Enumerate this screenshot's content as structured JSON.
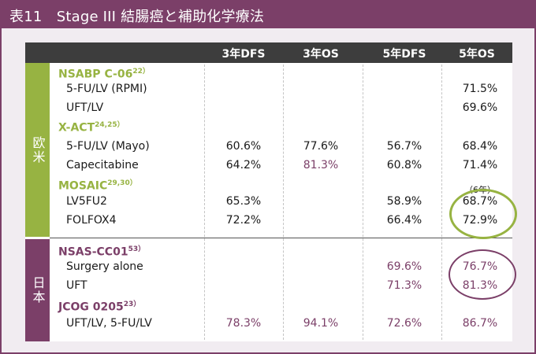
{
  "title": "表11　Stage III 結腸癌と補助化学療法",
  "columns": [
    "3年DFS",
    "3年OS",
    "5年DFS",
    "5年OS"
  ],
  "regions": {
    "west": "欧米",
    "japan": "日本"
  },
  "trials": [
    {
      "name": "NSABP C-06",
      "ref": "22）",
      "color": "green"
    },
    {
      "name": "X-ACT",
      "ref": "24,25）",
      "color": "green"
    },
    {
      "name": "MOSAIC",
      "ref": "29,30）",
      "color": "green"
    },
    {
      "name": "NSAS-CC01",
      "ref": "53）",
      "color": "purple"
    },
    {
      "name": "JCOG 0205",
      "ref": "23）",
      "color": "purple"
    }
  ],
  "arms": [
    {
      "label": "5-FU/LV (RPMI)",
      "dfs3": "",
      "os3": "",
      "dfs5": "",
      "os5": "71.5%"
    },
    {
      "label": "UFT/LV",
      "dfs3": "",
      "os3": "",
      "dfs5": "",
      "os5": "69.6%"
    },
    {
      "label": "5-FU/LV (Mayo)",
      "dfs3": "60.6%",
      "os3": "77.6%",
      "dfs5": "56.7%",
      "os5": "68.4%"
    },
    {
      "label": "Capecitabine",
      "dfs3": "64.2%",
      "os3": "81.3%",
      "dfs5": "60.8%",
      "os5": "71.4%"
    },
    {
      "label": "LV5FU2",
      "dfs3": "65.3%",
      "os3": "",
      "dfs5": "58.9%",
      "os5": "68.7%"
    },
    {
      "label": "FOLFOX4",
      "dfs3": "72.2%",
      "os3": "",
      "dfs5": "66.4%",
      "os5": "72.9%"
    },
    {
      "label": "Surgery alone",
      "dfs3": "",
      "os3": "",
      "dfs5": "69.6%",
      "os5": "76.7%"
    },
    {
      "label": "UFT",
      "dfs3": "",
      "os3": "",
      "dfs5": "71.3%",
      "os5": "81.3%"
    },
    {
      "label": "UFT/LV, 5-FU/LV",
      "dfs3": "78.3%",
      "os3": "94.1%",
      "dfs5": "72.6%",
      "os5": "86.7%"
    }
  ],
  "mosaic_note": "（6年）",
  "colors": {
    "accent_purple": "#7b3f68",
    "accent_green": "#97b342",
    "header_dark": "#3d3d3d"
  }
}
